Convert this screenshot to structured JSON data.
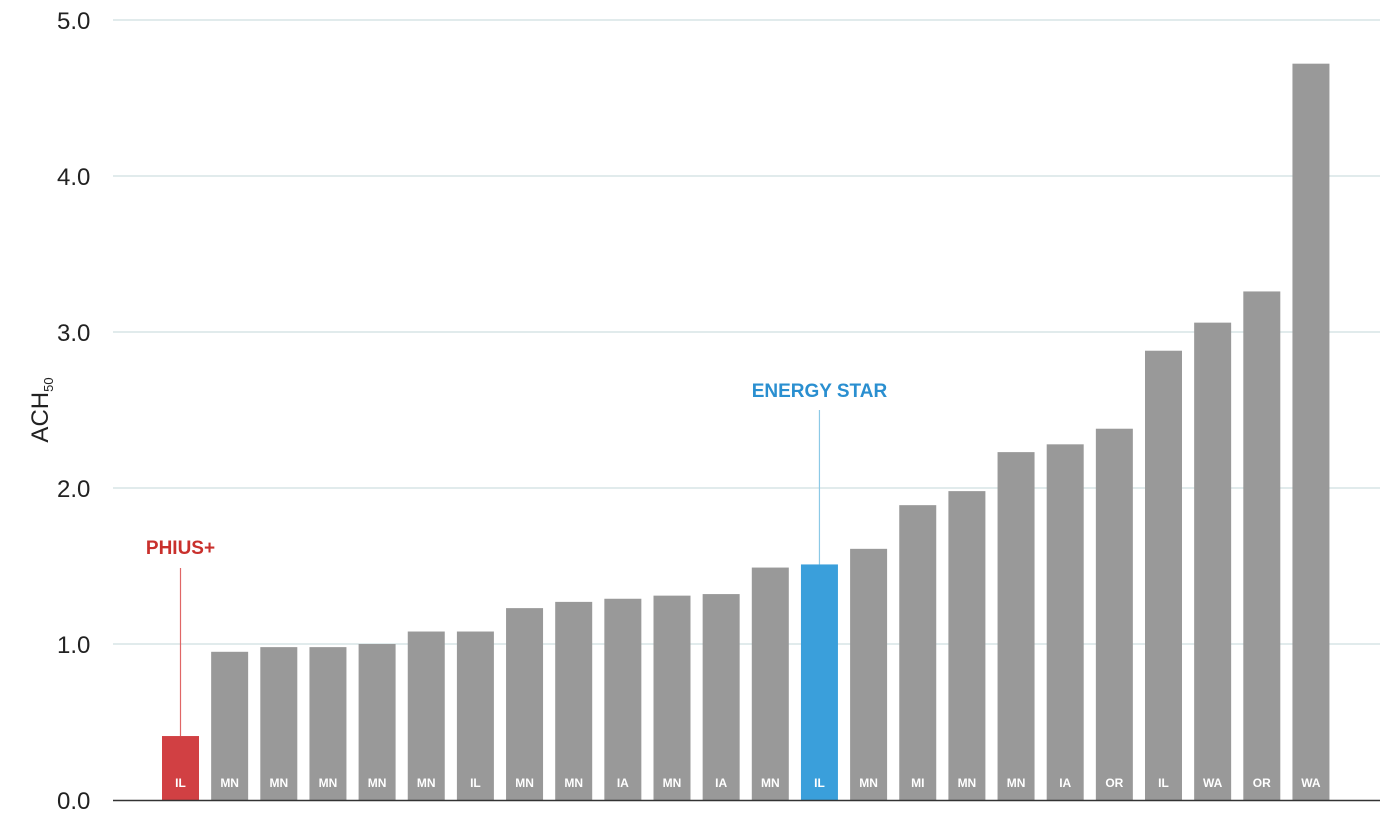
{
  "chart_data": {
    "type": "bar",
    "title": "",
    "xlabel": "",
    "ylabel": "ACH",
    "ylabel_subscript": "50",
    "ylim": [
      0,
      5
    ],
    "yticks": [
      "0.0",
      "1.0",
      "2.0",
      "3.0",
      "4.0",
      "5.0"
    ],
    "grid": true,
    "categories": [
      "IL",
      "MN",
      "MN",
      "MN",
      "MN",
      "MN",
      "IL",
      "MN",
      "MN",
      "IA",
      "MN",
      "IA",
      "MN",
      "IL",
      "MN",
      "MI",
      "MN",
      "MN",
      "IA",
      "OR",
      "IL",
      "WA",
      "OR",
      "WA"
    ],
    "values": [
      0.41,
      0.95,
      0.98,
      0.98,
      1.0,
      1.08,
      1.08,
      1.23,
      1.27,
      1.29,
      1.31,
      1.32,
      1.49,
      1.51,
      1.61,
      1.89,
      1.98,
      2.23,
      2.28,
      2.38,
      2.88,
      3.06,
      3.26,
      4.72
    ],
    "colors": {
      "default": "#999999",
      "phius": "#d14043",
      "energy_star": "#3a9fdb",
      "grid": "#e1ebec",
      "axis": "#333333"
    },
    "annotations": [
      {
        "text": "PHIUS+",
        "bar_index": 0,
        "color": "#c9302c",
        "leader_color": "#e06666"
      },
      {
        "text": "ENERGY STAR",
        "bar_index": 13,
        "color": "#2a8fd0",
        "leader_color": "#8cc9e6"
      }
    ]
  }
}
